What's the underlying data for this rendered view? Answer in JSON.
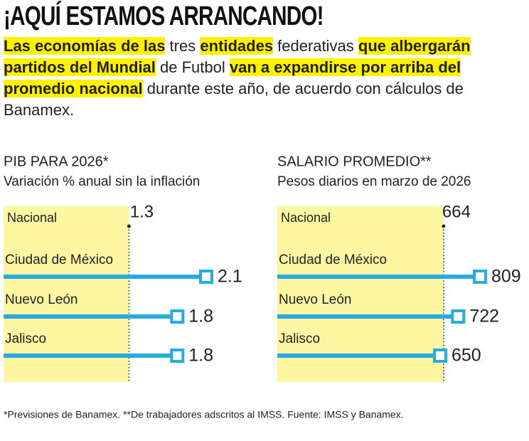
{
  "header": {
    "title": "¡AQUÍ ESTAMOS ARRANCANDO!",
    "subtitle": [
      {
        "text": "Las economías de las",
        "bold": true
      },
      {
        "text": " tres ",
        "bold": false
      },
      {
        "text": "entidades",
        "bold": true
      },
      {
        "text": " federativas ",
        "bold": false
      },
      {
        "text": "que albergarán partidos del Mundial",
        "bold": true
      },
      {
        "text": " de Futbol ",
        "bold": false
      },
      {
        "text": "van a expandirse por arriba del promedio nacional",
        "bold": true
      },
      {
        "text": " durante este año, de acuerdo con cálculos de Banamex.",
        "bold": false
      }
    ]
  },
  "chart_data": [
    {
      "type": "bar",
      "title": "PIB PARA 2026*",
      "subtitle": "Variación % anual sin la inflación",
      "categories": [
        "Ciudad de México",
        "Nuevo León",
        "Jalisco"
      ],
      "values": [
        2.1,
        1.8,
        1.8
      ],
      "reference": {
        "name": "Nacional",
        "value": 1.3
      },
      "xlim": [
        0,
        2.1
      ],
      "color": "#29abe2",
      "reference_color": "#fdf6a3"
    },
    {
      "type": "bar",
      "title": "SALARIO PROMEDIO**",
      "subtitle": "Pesos diarios en marzo de 2026",
      "categories": [
        "Ciudad de México",
        "Nuevo León",
        "Jalisco"
      ],
      "values": [
        809,
        722,
        650
      ],
      "reference": {
        "name": "Nacional",
        "value": 664
      },
      "xlim": [
        0,
        809
      ],
      "color": "#29abe2",
      "reference_color": "#fdf6a3"
    }
  ],
  "footnote": "*Previsiones de Banamex. **De trabajadores adscritos al IMSS. Fuente: IMSS y Banamex."
}
